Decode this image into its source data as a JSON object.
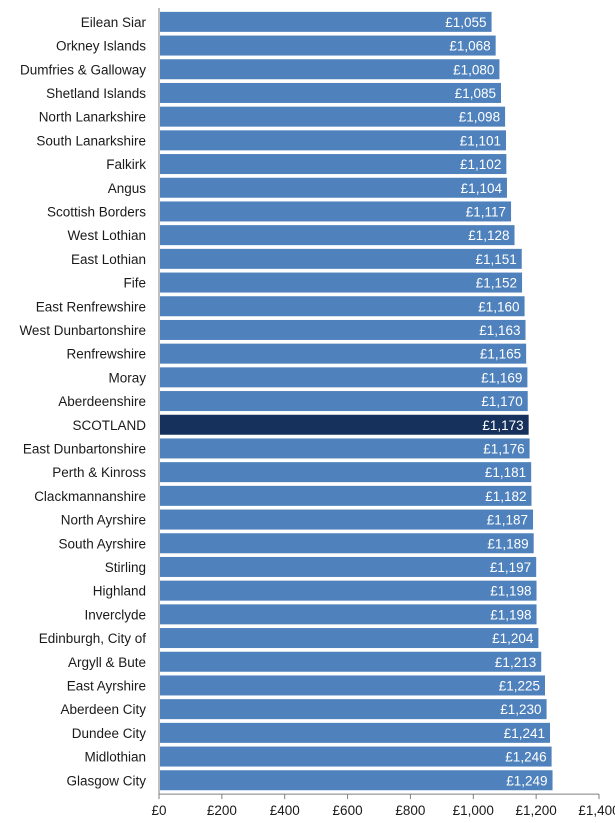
{
  "chart_data": {
    "type": "bar",
    "orientation": "horizontal",
    "categories": [
      "Eilean Siar",
      "Orkney Islands",
      "Dumfries & Galloway",
      "Shetland  Islands",
      "North Lanarkshire",
      "South Lanarkshire",
      "Falkirk",
      "Angus",
      "Scottish Borders",
      "West Lothian",
      "East Lothian",
      "Fife",
      "East Renfrewshire",
      "West Dunbartonshire",
      "Renfrewshire",
      "Moray",
      "Aberdeenshire",
      "SCOTLAND",
      "East Dunbartonshire",
      "Perth & Kinross",
      "Clackmannanshire",
      "North Ayrshire",
      "South Ayrshire",
      "Stirling",
      "Highland",
      "Inverclyde",
      "Edinburgh, City of",
      "Argyll & Bute",
      "East Ayrshire",
      "Aberdeen City",
      "Dundee City",
      "Midlothian",
      "Glasgow City"
    ],
    "values": [
      1055,
      1068,
      1080,
      1085,
      1098,
      1101,
      1102,
      1104,
      1117,
      1128,
      1151,
      1152,
      1160,
      1163,
      1165,
      1169,
      1170,
      1173,
      1176,
      1181,
      1182,
      1187,
      1189,
      1197,
      1198,
      1198,
      1204,
      1213,
      1225,
      1230,
      1241,
      1246,
      1249
    ],
    "value_labels": [
      "£1,055",
      "£1,068",
      "£1,080",
      "£1,085",
      "£1,098",
      "£1,101",
      "£1,102",
      "£1,104",
      "£1,117",
      "£1,128",
      "£1,151",
      "£1,152",
      "£1,160",
      "£1,163",
      "£1,165",
      "£1,169",
      "£1,170",
      "£1,173",
      "£1,176",
      "£1,181",
      "£1,182",
      "£1,187",
      "£1,189",
      "£1,197",
      "£1,198",
      "£1,198",
      "£1,204",
      "£1,213",
      "£1,225",
      "£1,230",
      "£1,241",
      "£1,246",
      "£1,249"
    ],
    "highlight_category": "SCOTLAND",
    "xlim": [
      0,
      1400
    ],
    "x_ticks": [
      0,
      200,
      400,
      600,
      800,
      1000,
      1200,
      1400
    ],
    "x_tick_labels": [
      "£0",
      "£200",
      "£400",
      "£600",
      "£800",
      "£1,000",
      "£1,200",
      "£1,400"
    ],
    "title": "",
    "xlabel": "",
    "ylabel": "",
    "grid": false
  },
  "colors": {
    "bar": "#4f81bd",
    "highlight_bar": "#16325c",
    "value_label": "#ffffff",
    "axis": "#7f7f7f"
  }
}
